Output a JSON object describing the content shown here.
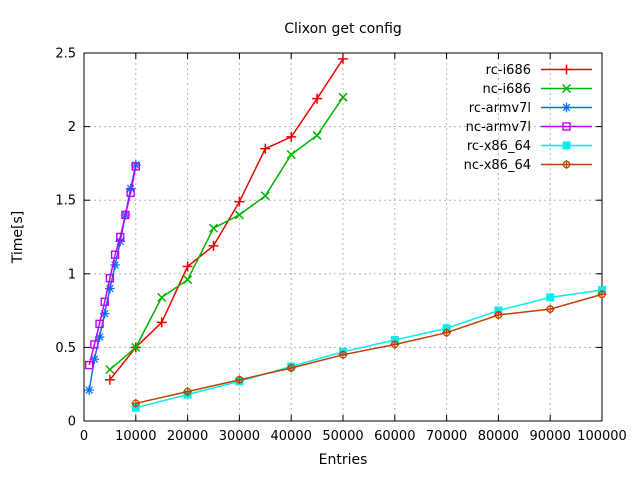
{
  "window": {
    "background": "#ffffff",
    "text_color": "#000000",
    "grid_color": "#b4b4b4"
  },
  "chart_data": {
    "type": "line",
    "title": "Clixon get config",
    "xlabel": "Entries",
    "ylabel": "Time[s]",
    "xlim": [
      0,
      100000
    ],
    "ylim": [
      0,
      2.5
    ],
    "x_ticks": [
      0,
      10000,
      20000,
      30000,
      40000,
      50000,
      60000,
      70000,
      80000,
      90000,
      100000
    ],
    "y_ticks": [
      0,
      0.5,
      1,
      1.5,
      2,
      2.5
    ],
    "grid": true,
    "legend_position": "top-right-inside",
    "series": [
      {
        "name": "rc-i686",
        "color": "#f00000",
        "marker": "plus",
        "x": [
          5000,
          10000,
          15000,
          20000,
          25000,
          30000,
          35000,
          40000,
          45000,
          50000
        ],
        "y": [
          0.28,
          0.5,
          0.67,
          1.05,
          1.19,
          1.49,
          1.85,
          1.93,
          2.19,
          2.46
        ]
      },
      {
        "name": "nc-i686",
        "color": "#00b400",
        "marker": "cross",
        "x": [
          5000,
          10000,
          15000,
          20000,
          25000,
          30000,
          35000,
          40000,
          45000,
          50000
        ],
        "y": [
          0.35,
          0.5,
          0.84,
          0.96,
          1.31,
          1.4,
          1.53,
          1.81,
          1.94,
          2.2
        ]
      },
      {
        "name": "rc-armv7l",
        "color": "#0f6bff",
        "marker": "asterisk",
        "x": [
          1000,
          2000,
          3000,
          4000,
          5000,
          6000,
          7000,
          8000,
          9000,
          10000
        ],
        "y": [
          0.21,
          0.42,
          0.57,
          0.73,
          0.9,
          1.06,
          1.22,
          1.4,
          1.58,
          1.74
        ]
      },
      {
        "name": "nc-armv7l",
        "color": "#c000ff",
        "marker": "open-square",
        "x": [
          1000,
          2000,
          3000,
          4000,
          5000,
          6000,
          7000,
          8000,
          9000,
          10000
        ],
        "y": [
          0.38,
          0.52,
          0.66,
          0.81,
          0.97,
          1.13,
          1.25,
          1.4,
          1.55,
          1.73
        ]
      },
      {
        "name": "rc-x86_64",
        "color": "#00eeee",
        "marker": "filled-square",
        "x": [
          10000,
          20000,
          30000,
          40000,
          50000,
          60000,
          70000,
          80000,
          90000,
          100000
        ],
        "y": [
          0.09,
          0.18,
          0.27,
          0.37,
          0.47,
          0.55,
          0.63,
          0.75,
          0.84,
          0.89
        ]
      },
      {
        "name": "nc-x86_64",
        "color": "#c04000",
        "marker": "open-circle",
        "x": [
          10000,
          20000,
          30000,
          40000,
          50000,
          60000,
          70000,
          80000,
          90000,
          100000
        ],
        "y": [
          0.12,
          0.2,
          0.28,
          0.36,
          0.45,
          0.52,
          0.6,
          0.72,
          0.76,
          0.86
        ]
      }
    ]
  }
}
